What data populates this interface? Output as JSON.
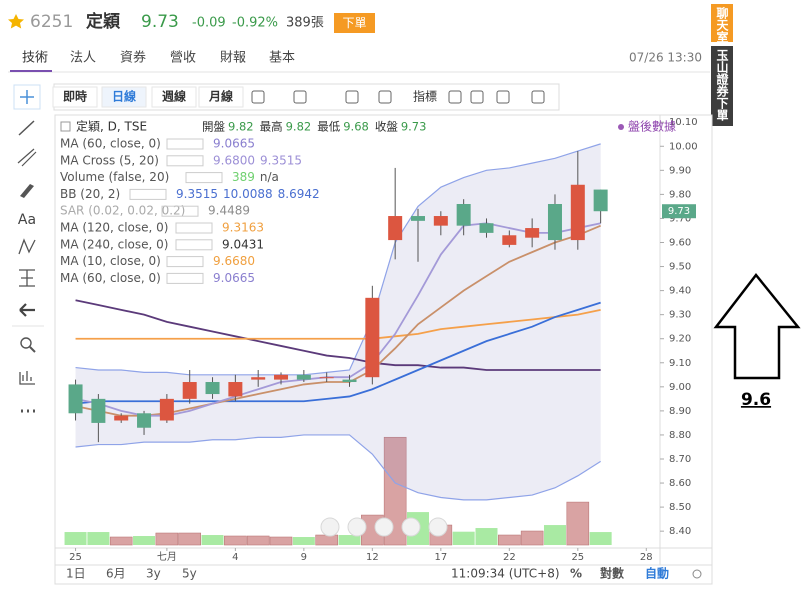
{
  "header": {
    "symbol": "6251",
    "name": "定穎",
    "price": "9.73",
    "change": "-0.09",
    "change_pct": "-0.92%",
    "volume": "389張",
    "order_button": "下單",
    "datetime": "07/26 13:30"
  },
  "tabs": [
    "技術",
    "法人",
    "資券",
    "營收",
    "財報",
    "基本"
  ],
  "side_buttons": [
    "聊天室",
    "玉山證券下單"
  ],
  "toolbar": {
    "buttons": [
      "即時",
      "日線",
      "週線",
      "月線"
    ],
    "indicators": "指標",
    "text_tool": "Aa"
  },
  "after_hours": "盤後數據",
  "chart_data": {
    "type": "candlestick",
    "ohlc_row": {
      "label": "定穎, D, TSE",
      "items": [
        "開盤",
        "最高",
        "最低",
        "收盤"
      ],
      "values": [
        9.82,
        9.82,
        9.68,
        9.73
      ]
    },
    "legend_rows": [
      {
        "label": "MA (60, close, 0)",
        "values": [
          "9.0665"
        ],
        "color": "#8a7fcf"
      },
      {
        "label": "MA Cross (5, 20)",
        "values": [
          "9.6800",
          "9.3515"
        ],
        "color": "#9c8fd6"
      },
      {
        "label": "Volume (false, 20)",
        "values": [
          "389",
          "n/a"
        ],
        "color": "#6fd06f"
      },
      {
        "label": "BB (20, 2)",
        "values": [
          "9.3515",
          "10.0088",
          "8.6942"
        ],
        "color": "#4a6fd0"
      },
      {
        "label": "SAR (0.02, 0.02, 0.2)",
        "values": [
          "9.4489"
        ],
        "color": "#8c8c8c"
      },
      {
        "label": "MA (120, close, 0)",
        "values": [
          "9.3163"
        ],
        "color": "#f0a040"
      },
      {
        "label": "MA (240, close, 0)",
        "values": [
          "9.0431"
        ],
        "color": "#333333"
      },
      {
        "label": "MA (10, close, 0)",
        "values": [
          "9.6680"
        ],
        "color": "#f0a040"
      },
      {
        "label": "MA (60, close, 0)",
        "values": [
          "9.0665"
        ],
        "color": "#8a7fcf"
      }
    ],
    "candles": {
      "open": [
        9.01,
        8.95,
        8.86,
        8.89,
        8.86,
        8.95,
        9.02,
        8.96,
        9.03,
        9.03,
        9.05,
        9.04,
        9.03,
        9.04,
        9.61,
        9.71,
        9.67,
        9.76,
        9.68,
        9.59,
        9.62,
        9.76,
        9.61,
        9.82
      ],
      "high": [
        9.03,
        8.97,
        8.89,
        8.9,
        8.97,
        9.07,
        9.04,
        9.05,
        9.07,
        9.06,
        9.07,
        9.06,
        9.05,
        9.42,
        9.91,
        9.74,
        9.73,
        9.78,
        9.7,
        9.65,
        9.7,
        9.8,
        9.98,
        9.82
      ],
      "low": [
        8.86,
        8.77,
        8.85,
        8.8,
        8.85,
        8.93,
        8.95,
        8.94,
        9.0,
        9.01,
        9.02,
        9.02,
        9.0,
        9.01,
        9.53,
        9.52,
        9.63,
        9.63,
        9.62,
        9.58,
        9.58,
        9.57,
        9.57,
        9.68
      ],
      "close": [
        8.89,
        8.85,
        8.88,
        8.83,
        8.95,
        9.02,
        8.97,
        9.02,
        9.04,
        9.05,
        9.03,
        9.04,
        9.02,
        9.37,
        9.71,
        9.69,
        9.71,
        9.67,
        9.64,
        9.63,
        9.66,
        9.61,
        9.84,
        9.73
      ],
      "up_color": "#dc5640",
      "down_color": "#5aa889"
    },
    "volume": {
      "values": [
        390,
        390,
        240,
        270,
        360,
        360,
        300,
        270,
        270,
        240,
        240,
        300,
        300,
        900,
        3240,
        990,
        600,
        400,
        510,
        300,
        420,
        600,
        1290,
        389
      ],
      "up_color": "#d9a3a3",
      "down_color": "#a9eaa3",
      "vlim": [
        0,
        4000
      ]
    },
    "bands": {
      "upper": [
        9.08,
        9.07,
        9.07,
        9.06,
        9.06,
        9.05,
        9.05,
        9.05,
        9.05,
        9.05,
        9.05,
        9.06,
        9.07,
        9.28,
        9.6,
        9.75,
        9.83,
        9.87,
        9.9,
        9.91,
        9.93,
        9.95,
        9.98,
        10.01
      ],
      "lower": [
        8.75,
        8.76,
        8.76,
        8.77,
        8.77,
        8.77,
        8.78,
        8.78,
        8.79,
        8.79,
        8.8,
        8.8,
        8.8,
        8.72,
        8.6,
        8.56,
        8.54,
        8.53,
        8.53,
        8.54,
        8.55,
        8.58,
        8.63,
        8.69
      ],
      "color": "#8fa3e8"
    },
    "lines": [
      {
        "color": "#5b3a7a",
        "values": [
          9.36,
          9.34,
          9.32,
          9.3,
          9.27,
          9.25,
          9.23,
          9.21,
          9.19,
          9.17,
          9.15,
          9.13,
          9.12,
          9.1,
          9.09,
          9.09,
          9.08,
          9.08,
          9.07,
          9.07,
          9.07,
          9.07,
          9.07,
          9.07
        ]
      },
      {
        "color": "#f5a04a",
        "values": [
          9.2,
          9.2,
          9.2,
          9.2,
          9.2,
          9.2,
          9.2,
          9.2,
          9.2,
          9.2,
          9.2,
          9.2,
          9.2,
          9.2,
          9.21,
          9.22,
          9.24,
          9.25,
          9.26,
          9.27,
          9.28,
          9.29,
          9.3,
          9.32
        ]
      },
      {
        "color": "#3a6fd8",
        "values": [
          8.93,
          8.94,
          8.94,
          8.94,
          8.94,
          8.94,
          8.94,
          8.94,
          8.94,
          8.94,
          8.94,
          8.95,
          8.96,
          8.99,
          9.03,
          9.07,
          9.11,
          9.15,
          9.19,
          9.22,
          9.25,
          9.29,
          9.32,
          9.35
        ]
      },
      {
        "color": "#c9906a",
        "values": [
          8.92,
          8.9,
          8.88,
          8.88,
          8.89,
          8.91,
          8.93,
          8.95,
          8.97,
          8.99,
          9.01,
          9.02,
          9.02,
          9.07,
          9.16,
          9.26,
          9.33,
          9.4,
          9.46,
          9.52,
          9.56,
          9.6,
          9.63,
          9.67
        ]
      },
      {
        "color": "#a49ad8",
        "values": [
          8.95,
          8.93,
          8.9,
          8.88,
          8.88,
          8.9,
          8.93,
          8.96,
          8.99,
          9.02,
          9.03,
          9.04,
          9.04,
          9.1,
          9.22,
          9.38,
          9.55,
          9.67,
          9.68,
          9.66,
          9.64,
          9.64,
          9.66,
          9.68
        ]
      }
    ],
    "xlim": [
      -0.9,
      25.6
    ],
    "xticks": [
      {
        "value": 0,
        "label": "25"
      },
      {
        "value": 4,
        "label": "七月"
      },
      {
        "value": 7,
        "label": "4"
      },
      {
        "value": 10,
        "label": "9"
      },
      {
        "value": 13,
        "label": "12"
      },
      {
        "value": 16,
        "label": "17"
      },
      {
        "value": 19,
        "label": "22"
      },
      {
        "value": 22,
        "label": "25"
      },
      {
        "value": 25,
        "label": "28"
      }
    ],
    "ylim": [
      8.33,
      10.13
    ],
    "yticks": [
      {
        "value": 8.4,
        "label": "8.40"
      },
      {
        "value": 8.5,
        "label": "8.50"
      },
      {
        "value": 8.6,
        "label": "8.60"
      },
      {
        "value": 8.7,
        "label": "8.70"
      },
      {
        "value": 8.8,
        "label": "8.80"
      },
      {
        "value": 8.9,
        "label": "8.90"
      },
      {
        "value": 9.0,
        "label": "9.00"
      },
      {
        "value": 9.1,
        "label": "9.10"
      },
      {
        "value": 9.2,
        "label": "9.20"
      },
      {
        "value": 9.3,
        "label": "9.30"
      },
      {
        "value": 9.4,
        "label": "9.40"
      },
      {
        "value": 9.5,
        "label": "9.50"
      },
      {
        "value": 9.6,
        "label": "9.60"
      },
      {
        "value": 9.7,
        "label": "9.70"
      },
      {
        "value": 9.8,
        "label": "9.80"
      },
      {
        "value": 9.9,
        "label": "9.90"
      },
      {
        "value": 10.0,
        "label": "10.00"
      },
      {
        "value": 10.1,
        "label": "10.10"
      }
    ],
    "grid": false
  },
  "footer": {
    "ranges": [
      "1日",
      "6月",
      "3y",
      "5y"
    ],
    "clock": "11:09:34 (UTC+8)",
    "options": [
      "%",
      "對數",
      "自動"
    ]
  },
  "annotation": {
    "text": "9.6"
  }
}
